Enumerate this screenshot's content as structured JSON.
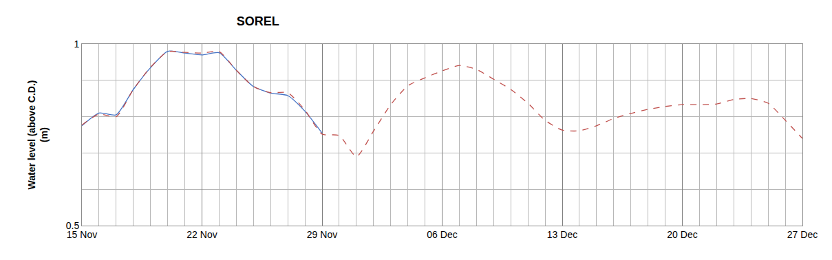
{
  "chart_data": {
    "type": "line",
    "title": "SOREL",
    "y_label": "Water level (above C.D.)\n(m)",
    "categories": [
      "15 Nov",
      null,
      null,
      null,
      null,
      null,
      null,
      "22 Nov",
      null,
      null,
      null,
      null,
      null,
      null,
      "29 Nov",
      null,
      null,
      null,
      null,
      null,
      null,
      "06 Dec",
      null,
      null,
      null,
      null,
      null,
      null,
      "13 Dec",
      null,
      null,
      null,
      null,
      null,
      null,
      "20 Dec",
      null,
      null,
      null,
      null,
      null,
      null,
      "27 Dec"
    ],
    "series": [
      {
        "color": "#4472c4",
        "line_style": "solid",
        "values": [
          0.775,
          0.81,
          0.805,
          0.875,
          0.935,
          0.98,
          0.975,
          0.97,
          0.976,
          0.928,
          0.883,
          0.865,
          0.858,
          0.815,
          0.755,
          null,
          null,
          null,
          null,
          null,
          null,
          null,
          null,
          null,
          null,
          null,
          null,
          null,
          null,
          null,
          null,
          null,
          null,
          null,
          null,
          null,
          null,
          null,
          null,
          null,
          null,
          null,
          null
        ]
      },
      {
        "color": "#c0504d",
        "line_style": "dashed",
        "values": [
          0.777,
          0.807,
          0.8,
          0.875,
          0.936,
          0.979,
          0.977,
          0.975,
          0.979,
          0.928,
          0.883,
          0.866,
          0.866,
          0.818,
          0.752,
          0.748,
          0.69,
          0.76,
          0.833,
          0.885,
          0.907,
          0.926,
          0.941,
          0.93,
          0.903,
          0.875,
          0.837,
          0.79,
          0.763,
          0.761,
          0.775,
          0.795,
          0.809,
          0.82,
          0.828,
          0.833,
          0.833,
          0.835,
          0.847,
          0.85,
          0.837,
          0.79,
          0.74
        ]
      }
    ],
    "ylim": [
      0.5,
      1
    ],
    "yticks": [
      0.5,
      1
    ],
    "grid": true
  }
}
